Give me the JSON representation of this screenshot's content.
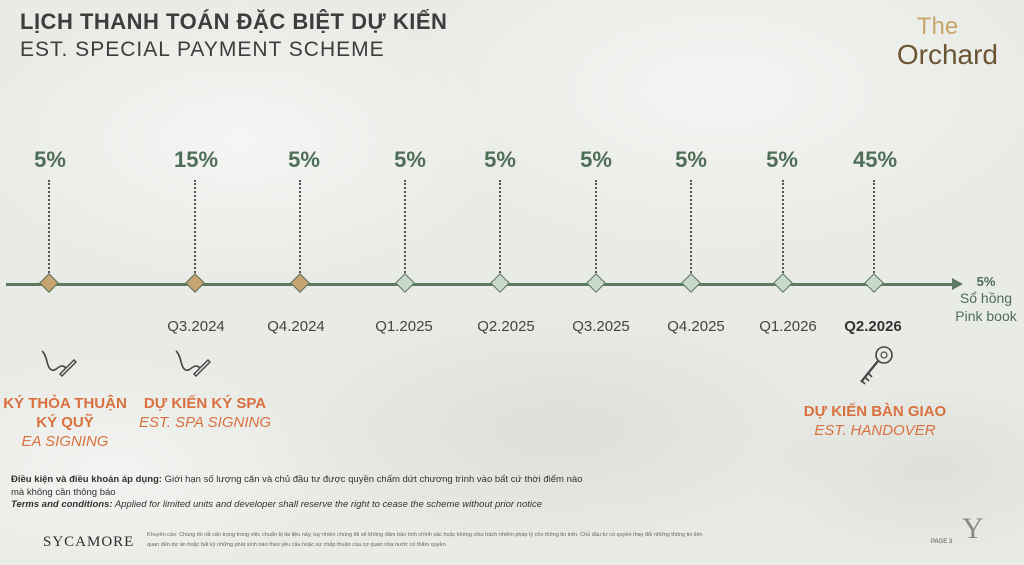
{
  "header": {
    "title_vn": "LỊCH THANH TOÁN ĐẶC BIỆT DỰ KIẾN",
    "title_en": "EST. SPECIAL PAYMENT SCHEME"
  },
  "logo": {
    "the": "The",
    "orchard": "Orchard"
  },
  "milestones": [
    {
      "percent": "5%",
      "period": "",
      "marker": "gold"
    },
    {
      "percent": "15%",
      "period": "Q3.2024",
      "marker": "gold"
    },
    {
      "percent": "5%",
      "period": "Q4.2024",
      "marker": "gold"
    },
    {
      "percent": "5%",
      "period": "Q1.2025",
      "marker": "sage"
    },
    {
      "percent": "5%",
      "period": "Q2.2025",
      "marker": "sage"
    },
    {
      "percent": "5%",
      "period": "Q3.2025",
      "marker": "sage"
    },
    {
      "percent": "5%",
      "period": "Q4.2025",
      "marker": "sage"
    },
    {
      "percent": "5%",
      "period": "Q1.2026",
      "marker": "sage"
    },
    {
      "percent": "45%",
      "period": "Q2.2026",
      "marker": "sage"
    }
  ],
  "final": {
    "percent": "5%",
    "label_vn": "Sổ hồng",
    "label_en": "Pink book"
  },
  "events": {
    "ea": {
      "vn_line1": "KÝ THỎA THUẬN",
      "vn_line2": "KÝ QUỸ",
      "en": "EA SIGNING",
      "icon": "signature-pen-icon"
    },
    "spa": {
      "vn": "DỰ KIẾN KÝ SPA",
      "en": "EST. SPA SIGNING",
      "icon": "signature-pen-icon"
    },
    "handover": {
      "vn": "DỰ KIẾN BÀN GIAO",
      "en": "EST. HANDOVER",
      "icon": "key-icon"
    }
  },
  "terms": {
    "vn_label": "Điều kiện và điều khoản áp dụng:",
    "vn_text": " Giới hạn số lượng căn và chủ đầu tư được quyền chấm dứt chương trình vào bất cứ thời điểm nào",
    "vn_text2": "mà không cần thông báo",
    "en_label": "Terms and conditions:",
    "en_text": " Applied for limited units and developer shall reserve the right to cease the scheme without prior notice"
  },
  "footer": {
    "brand": "SYCAMORE",
    "disclaimer_line1": "Khuyến cáo: Chúng tôi rất cẩn trọng trong việc chuẩn bị tài liệu này, tuy nhiên chúng tôi sẽ không đảm bảo tính chính xác hoặc không chịu trách nhiệm pháp lý cho thông tin trên. Chủ đầu tư có quyền thay đổi những thông tin liên",
    "disclaimer_line2": "quan đến dự án hoặc bất kỳ những phát sinh nào theo yêu cầu hoặc sự chấp thuận của cơ quan nhà nước có thẩm quyền",
    "page": "PAGE 3",
    "y_logo": "Y"
  },
  "colors": {
    "accent_green": "#4f6e58",
    "accent_orange": "#d9703f",
    "gold": "#c5a472",
    "sage": "#c9d9cb"
  }
}
